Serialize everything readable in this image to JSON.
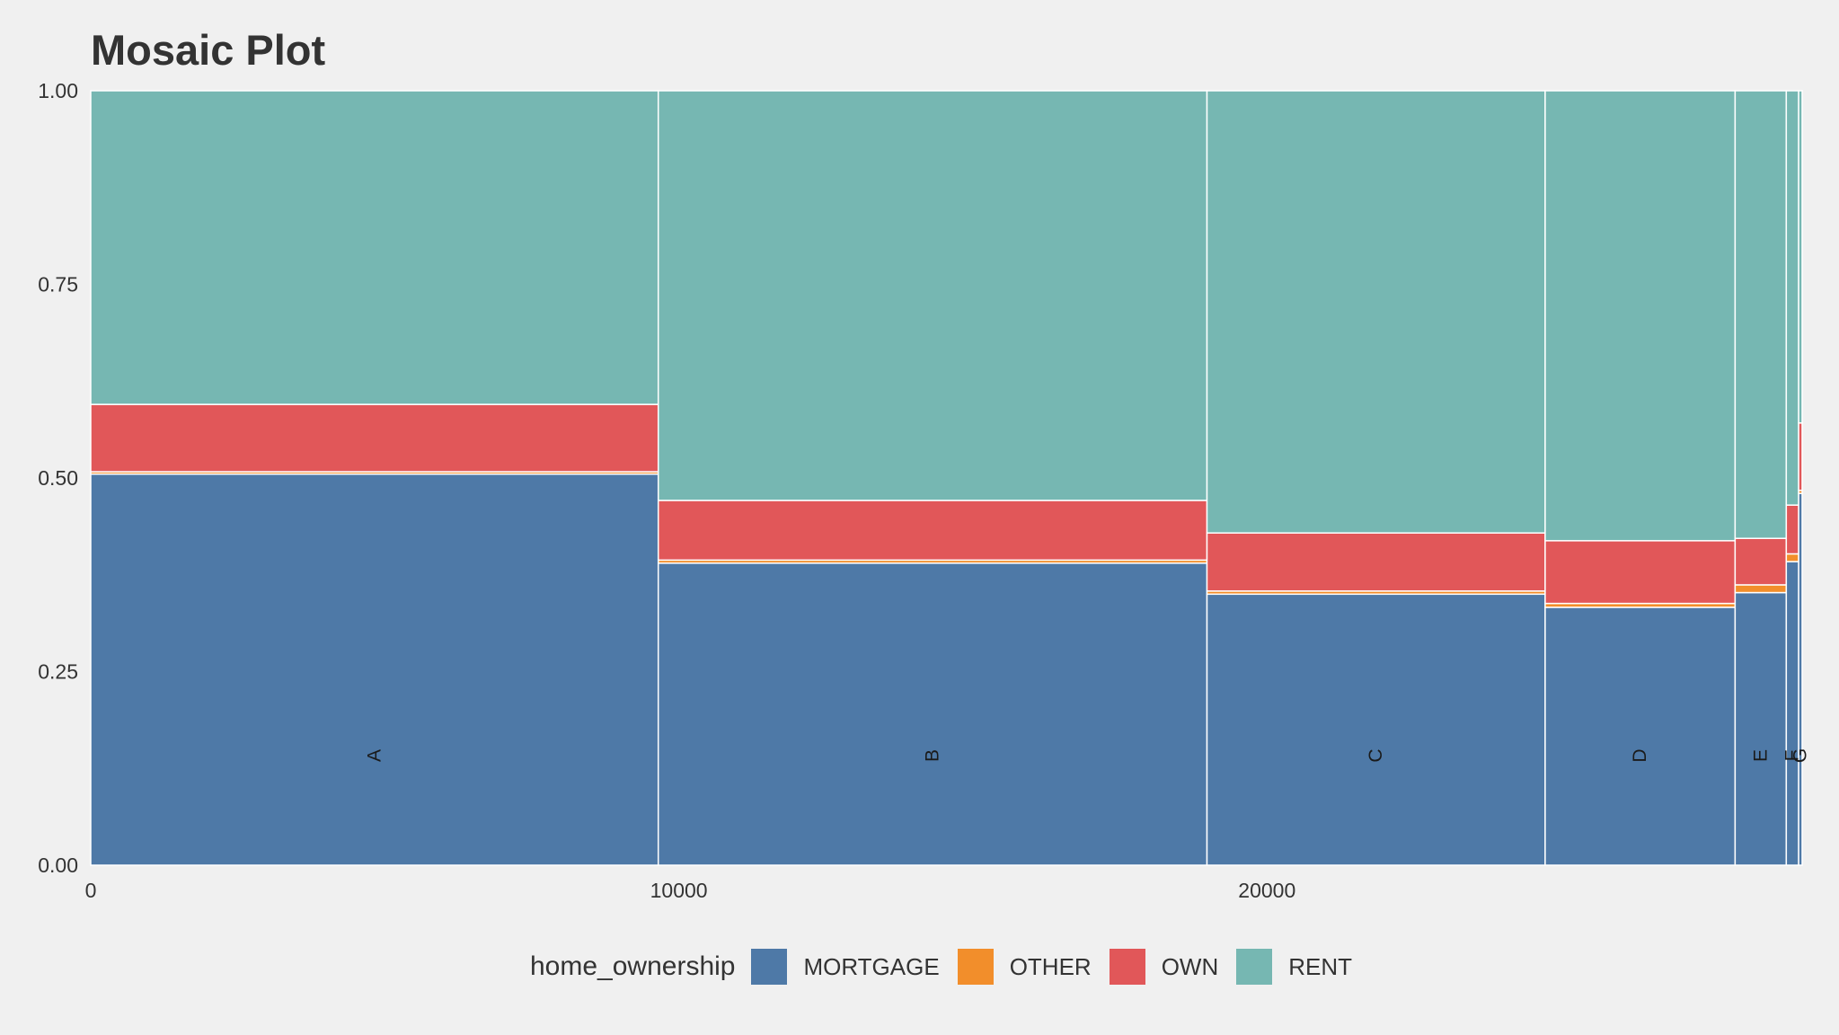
{
  "chart_data": {
    "type": "mosaic",
    "title": "Mosaic Plot",
    "xlabel": "",
    "ylabel": "",
    "xlim": [
      0,
      29100
    ],
    "ylim": [
      0,
      1
    ],
    "x_ticks": [
      "0",
      "10000",
      "20000"
    ],
    "x_tick_values": [
      0,
      10000,
      20000
    ],
    "y_ticks": [
      "0.00",
      "0.25",
      "0.50",
      "0.75",
      "1.00"
    ],
    "y_tick_values": [
      0,
      0.25,
      0.5,
      0.75,
      1
    ],
    "grid": false,
    "legend_title": "home_ownership",
    "legend_position": "bottom",
    "series": [
      {
        "name": "MORTGAGE",
        "color": "#4e79a7"
      },
      {
        "name": "OTHER",
        "color": "#f28e2b"
      },
      {
        "name": "OWN",
        "color": "#e15759"
      },
      {
        "name": "RENT",
        "color": "#76b7b2"
      }
    ],
    "categories": [
      {
        "label": "A",
        "count": 9650,
        "fractions": [
          0.505,
          0.003,
          0.087,
          0.405
        ]
      },
      {
        "label": "B",
        "count": 9330,
        "fractions": [
          0.39,
          0.004,
          0.077,
          0.529
        ]
      },
      {
        "label": "C",
        "count": 5750,
        "fractions": [
          0.35,
          0.004,
          0.075,
          0.571
        ]
      },
      {
        "label": "D",
        "count": 3230,
        "fractions": [
          0.333,
          0.005,
          0.081,
          0.581
        ]
      },
      {
        "label": "E",
        "count": 870,
        "fractions": [
          0.352,
          0.01,
          0.06,
          0.578
        ]
      },
      {
        "label": "F",
        "count": 210,
        "fractions": [
          0.392,
          0.01,
          0.063,
          0.535
        ]
      },
      {
        "label": "G",
        "count": 60,
        "fractions": [
          0.48,
          0.004,
          0.087,
          0.429
        ]
      }
    ]
  }
}
